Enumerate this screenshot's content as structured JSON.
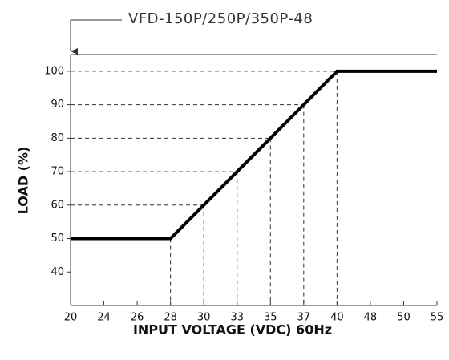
{
  "chart_data": {
    "type": "line",
    "title": "VFD-150P/250P/350P-48",
    "x_label": "INPUT VOLTAGE (VDC) 60Hz",
    "y_label": "LOAD (%)",
    "categories": [
      "20",
      "24",
      "26",
      "28",
      "30",
      "33",
      "35",
      "37",
      "40",
      "48",
      "50",
      "55"
    ],
    "series": [
      {
        "name": "Load",
        "color": "#000000",
        "values": [
          50,
          50,
          50,
          50,
          60,
          70,
          80,
          90,
          100,
          100,
          100,
          100
        ]
      }
    ],
    "ylim": [
      30,
      105
    ],
    "yticks": [
      40,
      50,
      60,
      70,
      80,
      90,
      100
    ]
  }
}
